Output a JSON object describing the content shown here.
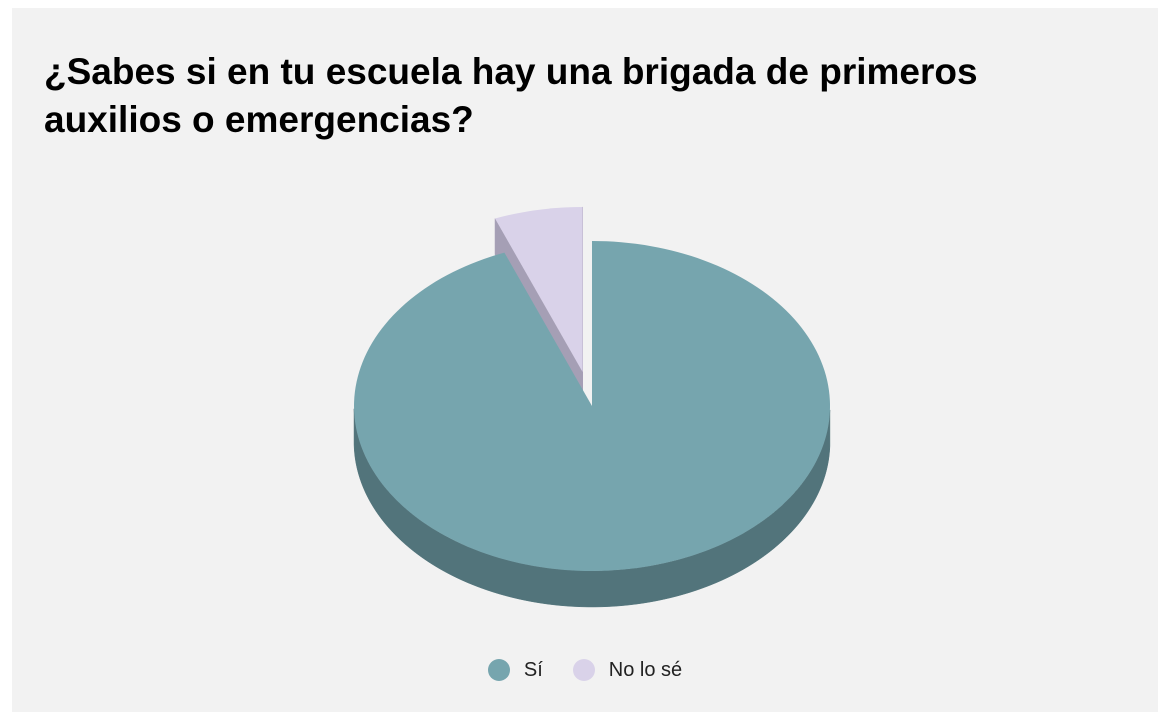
{
  "chart_data": {
    "type": "pie",
    "title": "¿Sabes si en tu escuela hay una brigada de primeros auxilios o emergencias?",
    "categories": [
      "Sí",
      "No lo sé"
    ],
    "values": [
      94,
      6
    ],
    "colors": [
      "#76a5ae",
      "#d9d2e9"
    ],
    "side_colors": [
      "#52747b",
      "#a59fb5"
    ],
    "exploded": [
      false,
      true
    ],
    "style": "3d",
    "legend_position": "bottom"
  }
}
